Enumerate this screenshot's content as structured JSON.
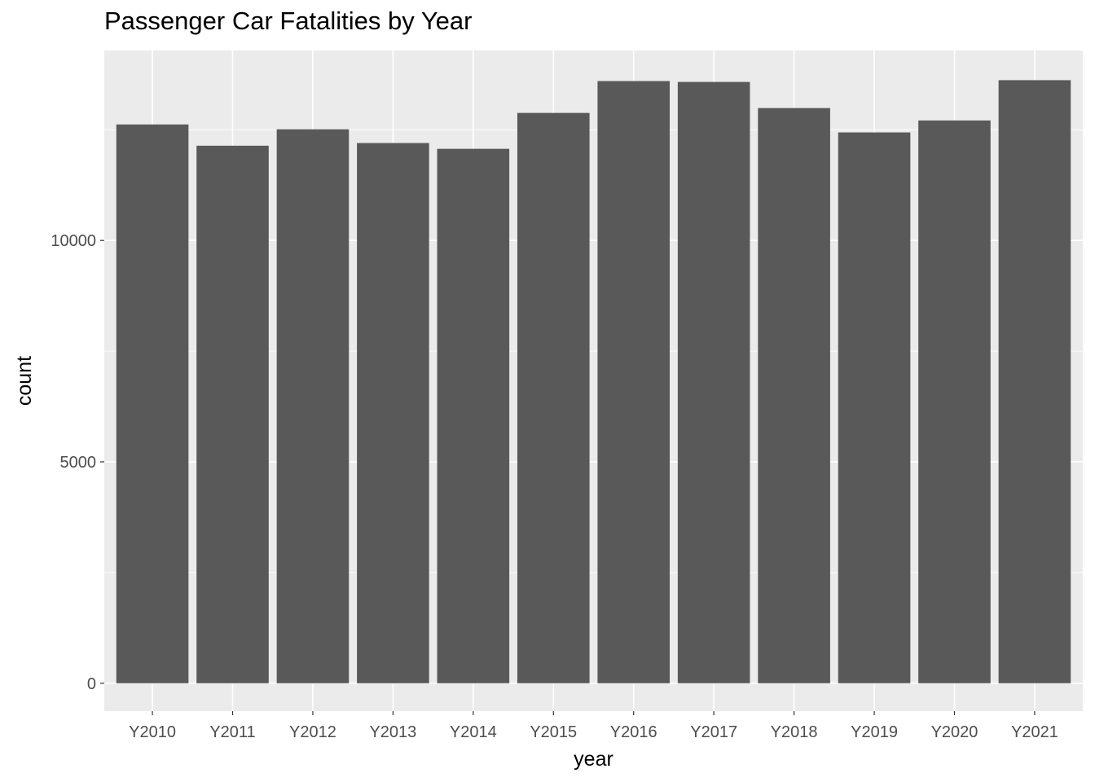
{
  "colors": {
    "panel_background": "#EBEBEB",
    "grid_major": "#FFFFFF",
    "bar_fill": "#595959",
    "tick_text": "#4D4D4D",
    "axis_title_text": "#000000"
  },
  "chart_data": {
    "type": "bar",
    "title": "Passenger Car Fatalities by Year",
    "xlabel": "year",
    "ylabel": "count",
    "categories": [
      "Y2010",
      "Y2011",
      "Y2012",
      "Y2013",
      "Y2014",
      "Y2015",
      "Y2016",
      "Y2017",
      "Y2018",
      "Y2019",
      "Y2020",
      "Y2021"
    ],
    "values": [
      12620,
      12140,
      12510,
      12200,
      12070,
      12880,
      13600,
      13580,
      12990,
      12440,
      12710,
      13620
    ],
    "ylim": [
      -630,
      14290
    ],
    "yticks": [
      0,
      5000,
      10000
    ],
    "ytick_labels": [
      "0",
      "5000",
      "10000"
    ],
    "grid": true,
    "legend": "none"
  }
}
